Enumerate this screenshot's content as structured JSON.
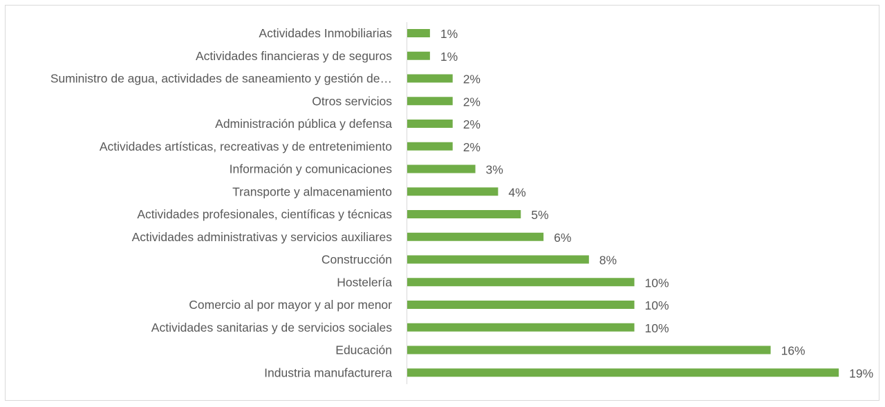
{
  "chart_data": {
    "type": "bar",
    "orientation": "horizontal",
    "title": "",
    "xlabel": "",
    "ylabel": "",
    "categories": [
      "Actividades Inmobiliarias",
      "Actividades financieras y de seguros",
      "Suministro de agua, actividades de saneamiento y gestión de…",
      "Otros servicios",
      "Administración pública y defensa",
      "Actividades artísticas, recreativas y de entretenimiento",
      "Información y comunicaciones",
      "Transporte y almacenamiento",
      "Actividades profesionales, científicas y técnicas",
      "Actividades administrativas y servicios auxiliares",
      "Construcción",
      "Hostelería",
      "Comercio al por mayor y al por menor",
      "Actividades sanitarias y de servicios sociales",
      "Educación",
      "Industria manufacturera"
    ],
    "values": [
      1,
      1,
      2,
      2,
      2,
      2,
      3,
      4,
      5,
      6,
      8,
      10,
      10,
      10,
      16,
      19
    ],
    "data_labels": [
      "1%",
      "1%",
      "2%",
      "2%",
      "2%",
      "2%",
      "3%",
      "4%",
      "5%",
      "6%",
      "8%",
      "10%",
      "10%",
      "10%",
      "16%",
      "19%"
    ],
    "unit": "%",
    "xlim": [
      0,
      19
    ],
    "grid": false,
    "legend": "none",
    "colors": {
      "bar": "#70AD47",
      "text": "#595959",
      "axis": "#d9d9d9"
    }
  }
}
